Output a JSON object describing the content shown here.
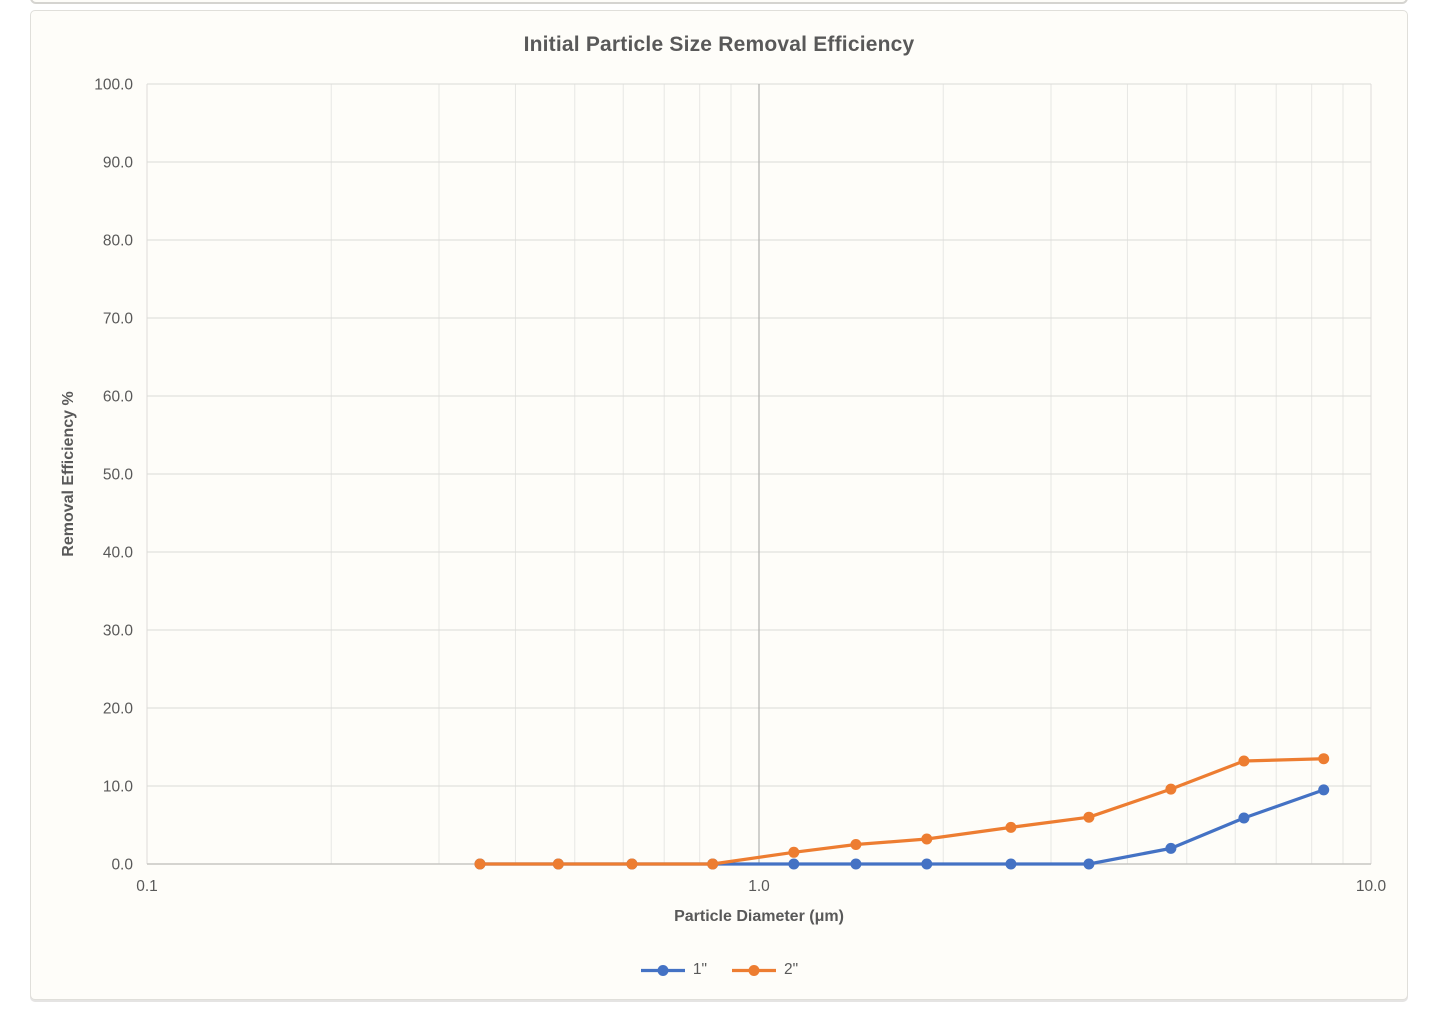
{
  "chart_data": {
    "type": "line",
    "title": "Initial Particle Size Removal Efficiency",
    "xlabel": "Particle Diameter (μm)",
    "ylabel": "Removal Efficiency %",
    "x_scale": "log",
    "xlim": [
      0.1,
      10
    ],
    "ylim": [
      0,
      100
    ],
    "grid": true,
    "legend_position": "bottom",
    "y_tick_step": 10,
    "y_tick_labels": [
      "0.0",
      "10.0",
      "20.0",
      "30.0",
      "40.0",
      "50.0",
      "60.0",
      "70.0",
      "80.0",
      "90.0",
      "100.0"
    ],
    "x_tick_values": [
      0.1,
      1,
      10
    ],
    "x_tick_labels": [
      "0.1",
      "1.0",
      "10.0"
    ],
    "x_minor_gridlines": [
      0.2,
      0.3,
      0.4,
      0.5,
      0.6,
      0.7,
      0.8,
      0.9,
      2,
      3,
      4,
      5,
      6,
      7,
      8,
      9
    ],
    "x": [
      0.35,
      0.47,
      0.62,
      0.84,
      1.14,
      1.44,
      1.88,
      2.58,
      3.46,
      4.71,
      6.2,
      8.37
    ],
    "series": [
      {
        "name": "1\"",
        "color": "#4472C4",
        "values": [
          0,
          0,
          0,
          0,
          0,
          0,
          0,
          0,
          0,
          2.0,
          5.9,
          9.5
        ]
      },
      {
        "name": "2\"",
        "color": "#ED7D31",
        "values": [
          0,
          0,
          0,
          0,
          1.5,
          2.5,
          3.2,
          4.7,
          6.0,
          9.6,
          13.2,
          13.5
        ]
      }
    ]
  }
}
